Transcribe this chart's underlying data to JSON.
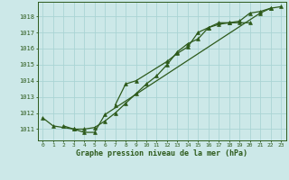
{
  "title": "Graphe pression niveau de la mer (hPa)",
  "bg_color": "#cce8e8",
  "grid_color": "#aad4d4",
  "line_color": "#2d5a1b",
  "y_ticks": [
    1011,
    1012,
    1013,
    1014,
    1015,
    1016,
    1017,
    1018
  ],
  "ylim": [
    1010.3,
    1018.9
  ],
  "xlim": [
    -0.5,
    23.5
  ],
  "s1_x": [
    0,
    1,
    3,
    4,
    5,
    6,
    21,
    22
  ],
  "s1_y": [
    1011.7,
    1011.2,
    1011.0,
    1010.8,
    1010.8,
    1011.9,
    1018.2,
    1018.5
  ],
  "s2_x": [
    2,
    3,
    4,
    5,
    6,
    7,
    8,
    9,
    10,
    11,
    12,
    13,
    14,
    15,
    16,
    17,
    18,
    19,
    20
  ],
  "s2_y": [
    1011.2,
    1011.0,
    1011.0,
    1011.1,
    1011.5,
    1012.0,
    1012.6,
    1013.2,
    1013.8,
    1014.3,
    1015.0,
    1015.8,
    1016.3,
    1016.6,
    1017.3,
    1017.5,
    1017.6,
    1017.6,
    1017.6
  ],
  "s3_x": [
    7,
    8,
    9,
    12,
    13,
    14,
    15,
    16,
    17,
    18,
    19,
    20,
    21,
    22,
    23
  ],
  "s3_y": [
    1012.5,
    1013.8,
    1014.0,
    1015.2,
    1015.7,
    1016.1,
    1017.0,
    1017.3,
    1017.6,
    1017.6,
    1017.7,
    1018.2,
    1018.3,
    1018.5,
    1018.6
  ]
}
